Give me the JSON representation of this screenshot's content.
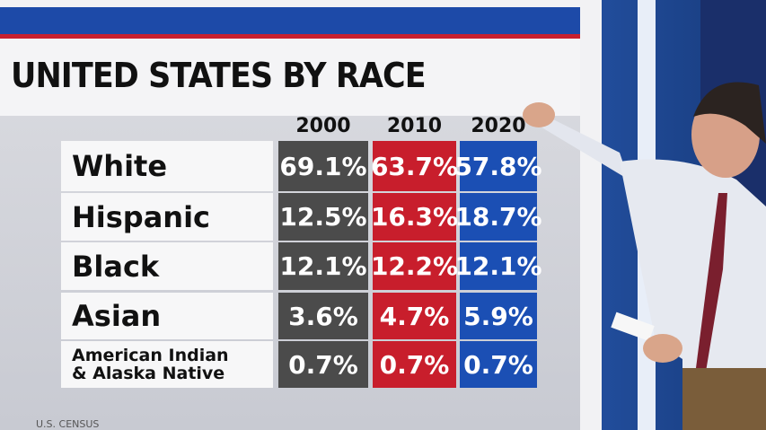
{
  "header": {
    "title": "UNITED STATES BY RACE"
  },
  "table": {
    "columns": [
      "2000",
      "2010",
      "2020"
    ],
    "rows": [
      {
        "label": "White",
        "values": [
          "69.1%",
          "63.7%",
          "57.8%"
        ]
      },
      {
        "label": "Hispanic",
        "values": [
          "12.5%",
          "16.3%",
          "18.7%"
        ]
      },
      {
        "label": "Black",
        "values": [
          "12.1%",
          "12.2%",
          "12.1%"
        ]
      },
      {
        "label": "Asian",
        "values": [
          "3.6%",
          "4.7%",
          "5.9%"
        ]
      },
      {
        "label": "American Indian\n& Alaska Native",
        "values": [
          "0.7%",
          "0.7%",
          "0.7%"
        ]
      }
    ]
  },
  "source": "U.S. CENSUS"
}
